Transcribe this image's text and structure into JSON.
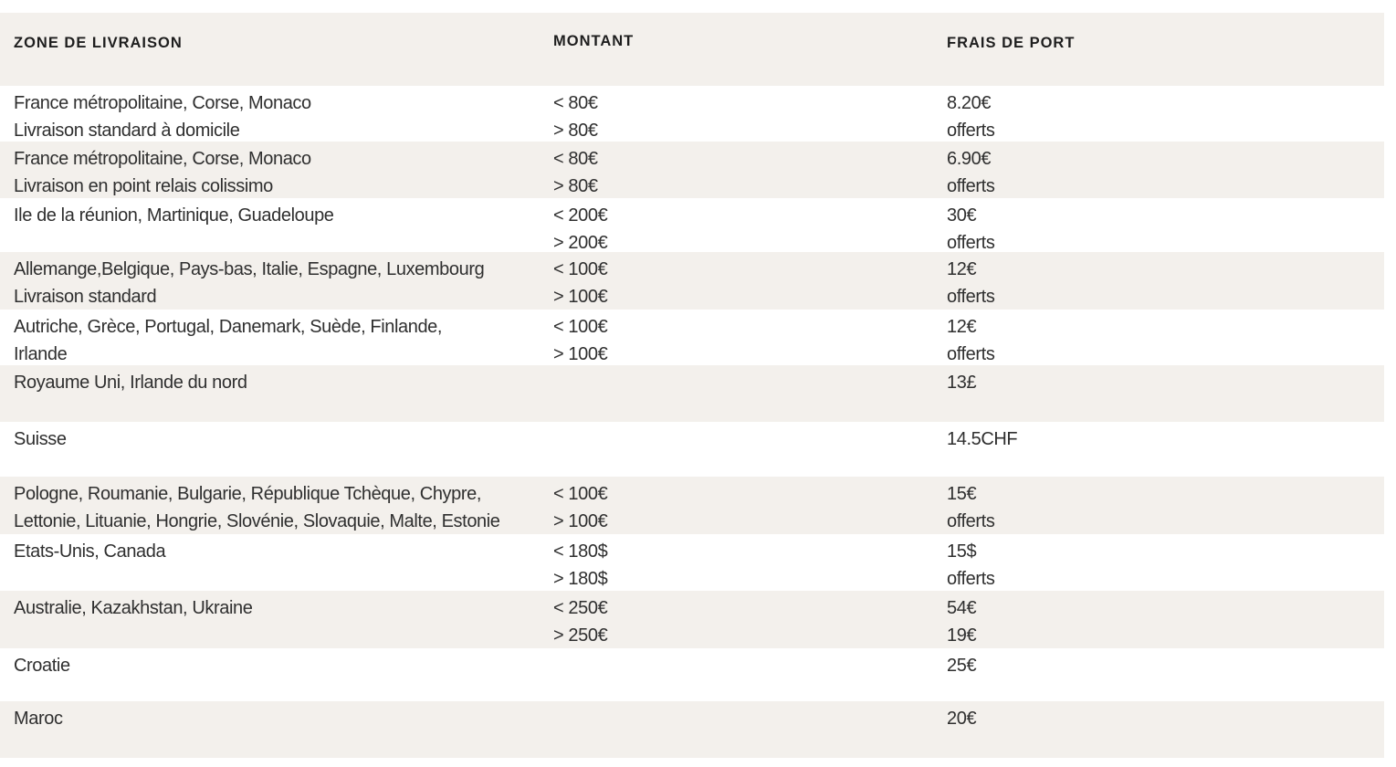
{
  "header": {
    "zone": "ZONE DE LIVRAISON",
    "montant": "MONTANT",
    "frais": "FRAIS DE PORT"
  },
  "colors": {
    "band": "#f3f0ec",
    "text": "#2f2f2f"
  },
  "rows": [
    {
      "zone": [
        "France métropolitaine, Corse, Monaco",
        "Livraison standard à domicile"
      ],
      "montant": [
        "< 80€",
        "> 80€"
      ],
      "frais": [
        "8.20€",
        "offerts"
      ]
    },
    {
      "zone": [
        "France métropolitaine, Corse, Monaco",
        "Livraison en point relais colissimo"
      ],
      "montant": [
        "< 80€",
        "> 80€"
      ],
      "frais": [
        "6.90€",
        "offerts"
      ]
    },
    {
      "zone": [
        "Ile de la réunion, Martinique, Guadeloupe",
        ""
      ],
      "montant": [
        "< 200€",
        "> 200€"
      ],
      "frais": [
        "30€",
        "offerts"
      ]
    },
    {
      "zone": [
        "Allemange,Belgique, Pays-bas, Italie, Espagne, Luxembourg",
        "Livraison standard"
      ],
      "montant": [
        "< 100€",
        "> 100€"
      ],
      "frais": [
        "12€",
        "offerts"
      ]
    },
    {
      "zone": [
        "Autriche, Grèce, Portugal, Danemark, Suède, Finlande,",
        "Irlande"
      ],
      "montant": [
        "< 100€",
        "> 100€"
      ],
      "frais": [
        "12€",
        "offerts"
      ]
    },
    {
      "zone": [
        "Royaume Uni, Irlande du nord",
        ""
      ],
      "montant": [
        "",
        ""
      ],
      "frais": [
        "13£",
        ""
      ]
    },
    {
      "zone": [
        "Suisse",
        ""
      ],
      "montant": [
        "",
        ""
      ],
      "frais": [
        "14.5CHF",
        ""
      ]
    },
    {
      "zone": [
        "Pologne, Roumanie, Bulgarie, République Tchèque, Chypre,",
        "Lettonie, Lituanie, Hongrie, Slovénie, Slovaquie, Malte, Estonie"
      ],
      "montant": [
        "< 100€",
        "> 100€"
      ],
      "frais": [
        "15€",
        "offerts"
      ]
    },
    {
      "zone": [
        "Etats-Unis, Canada",
        ""
      ],
      "montant": [
        "< 180$",
        "> 180$"
      ],
      "frais": [
        "15$",
        "offerts"
      ]
    },
    {
      "zone": [
        "Australie, Kazakhstan, Ukraine",
        ""
      ],
      "montant": [
        "< 250€",
        "> 250€"
      ],
      "frais": [
        "54€",
        "19€"
      ]
    },
    {
      "zone": [
        "Croatie",
        ""
      ],
      "montant": [
        "",
        ""
      ],
      "frais": [
        "25€",
        ""
      ]
    },
    {
      "zone": [
        "Maroc",
        ""
      ],
      "montant": [
        "",
        ""
      ],
      "frais": [
        "20€",
        ""
      ]
    }
  ]
}
